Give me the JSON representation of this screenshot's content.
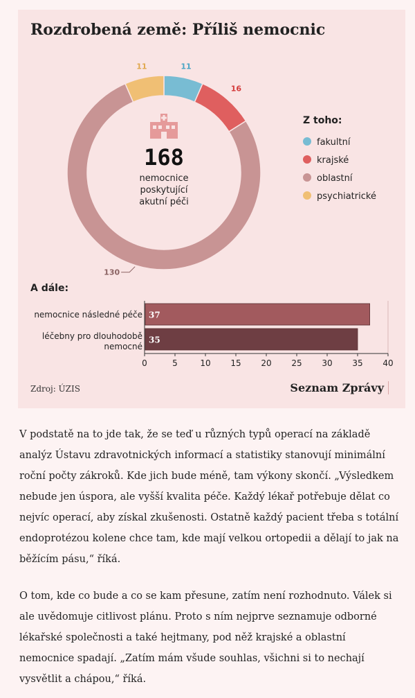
{
  "title": "Rozdrobená země: Příliš nemocnic",
  "center": {
    "total": "168",
    "lines": [
      "nemocnice",
      "poskytující",
      "akutní péči"
    ],
    "icon": "hospital-icon"
  },
  "legend": {
    "title": "Z toho:",
    "items": [
      {
        "label": "fakultní",
        "color": "#78bcd3"
      },
      {
        "label": "krajské",
        "color": "#df5f5f"
      },
      {
        "label": "oblastní",
        "color": "#c89494"
      },
      {
        "label": "psychiatrické",
        "color": "#f0bf74"
      }
    ]
  },
  "sub_title": "A dále:",
  "source": "Zdroj: ÚZIS",
  "brand": "Seznam Zprávy",
  "chart_data": [
    {
      "type": "pie",
      "categories": [
        "fakultní",
        "krajské",
        "oblastní",
        "psychiatrické"
      ],
      "values": [
        11,
        16,
        130,
        11
      ],
      "value_labels": [
        "11",
        "16",
        "130",
        "11"
      ],
      "colors": [
        "#78bcd3",
        "#df5f5f",
        "#c89494",
        "#f0bf74"
      ],
      "label_colors": [
        "#4aa5c4",
        "#d43b3b",
        "#8b6363",
        "#e0a84f"
      ]
    },
    {
      "type": "bar",
      "orientation": "horizontal",
      "categories": [
        "nemocnice následné péče",
        "léčebny pro dlouhodobě nemocné"
      ],
      "category_lines": [
        [
          "nemocnice následné péče"
        ],
        [
          "léčebny pro dlouhodobě",
          "nemocné"
        ]
      ],
      "values": [
        37,
        35
      ],
      "value_labels": [
        "37",
        "35"
      ],
      "colors": [
        "#a25a5e",
        "#6e3e43"
      ],
      "xlim": [
        0,
        40
      ],
      "xticks": [
        0,
        5,
        10,
        15,
        20,
        25,
        30,
        35,
        40
      ],
      "xtick_labels": [
        "0",
        "5",
        "10",
        "15",
        "20",
        "25",
        "30",
        "35",
        "40"
      ]
    }
  ],
  "paragraphs": [
    {
      "lines": [
        "V podstatě na to jde tak, že se teď u různých typů operací na základě",
        "analýz Ústavu zdravotnických informací a statistiky stanovují minimální",
        "roční počty zákroků. Kde jich bude méně, tam výkony skončí. „Výsledkem",
        "nebude jen úspora, ale vyšší kvalita péče. Každý lékař potřebuje dělat co",
        "nejvíc operací, aby získal zkušenosti. Ostatně každý pacient třeba s totální",
        "endoprotézou kolene chce tam, kde mají velkou ortopedii a dělají to jak na",
        "běžícím pásu,“ říká."
      ]
    },
    {
      "lines": [
        "O tom, kde co bude a co se kam přesune, zatím není rozhodnuto. Válek si",
        "ale uvědomuje citlivost plánu. Proto s ním nejprve seznamuje odborné",
        "lékařské společnosti a také hejtmany, pod něž krajské a oblastní",
        "nemocnice spadají. „Zatím mám všude souhlas, všichni si to nechají",
        "vysvětlit a chápou,“ říká."
      ]
    }
  ]
}
